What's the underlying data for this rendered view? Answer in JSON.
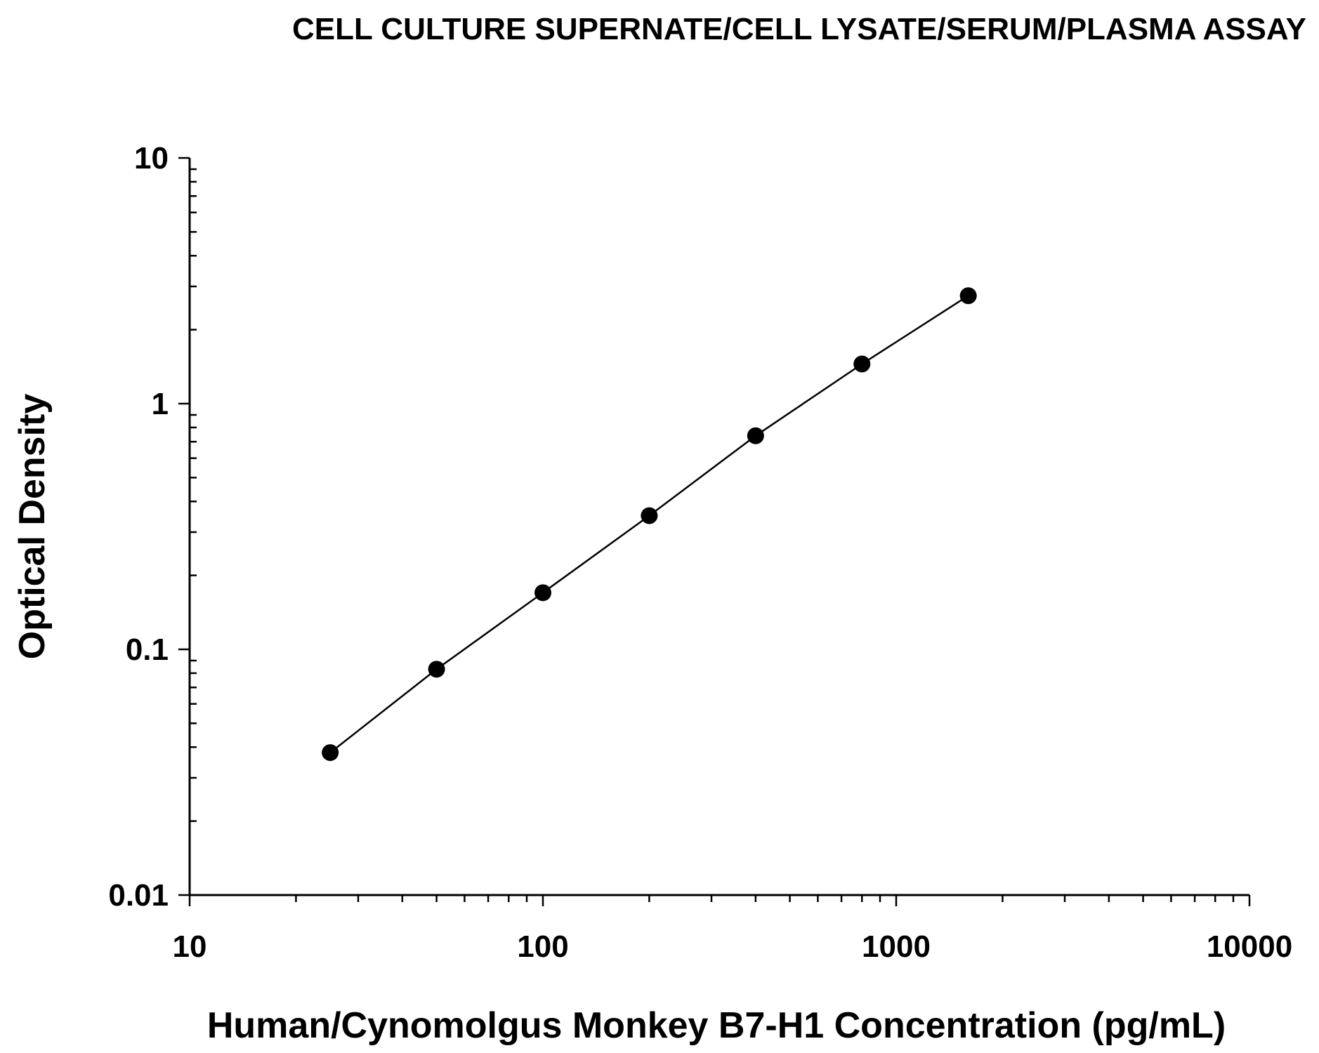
{
  "chart_data": {
    "type": "scatter",
    "title": "CELL CULTURE SUPERNATE/CELL LYSATE/SERUM/PLASMA ASSAY",
    "xlabel": "Human/Cynomolgus Monkey B7-H1 Concentration (pg/mL)",
    "ylabel": "Optical Density",
    "xscale": "log",
    "yscale": "log",
    "xlim": [
      10,
      10000
    ],
    "ylim": [
      0.01,
      10
    ],
    "x_ticks": [
      "10",
      "100",
      "1000",
      "10000"
    ],
    "y_ticks": [
      "0.01",
      "0.1",
      "1",
      "10"
    ],
    "grid": false,
    "fit_line": true,
    "series": [
      {
        "x": [
          25,
          50,
          100,
          200,
          400,
          800,
          1600
        ],
        "y": [
          0.038,
          0.083,
          0.17,
          0.35,
          0.74,
          1.45,
          2.75
        ]
      }
    ],
    "colors": {
      "marker": "#000000",
      "line": "#000000",
      "background": "#ffffff"
    }
  }
}
